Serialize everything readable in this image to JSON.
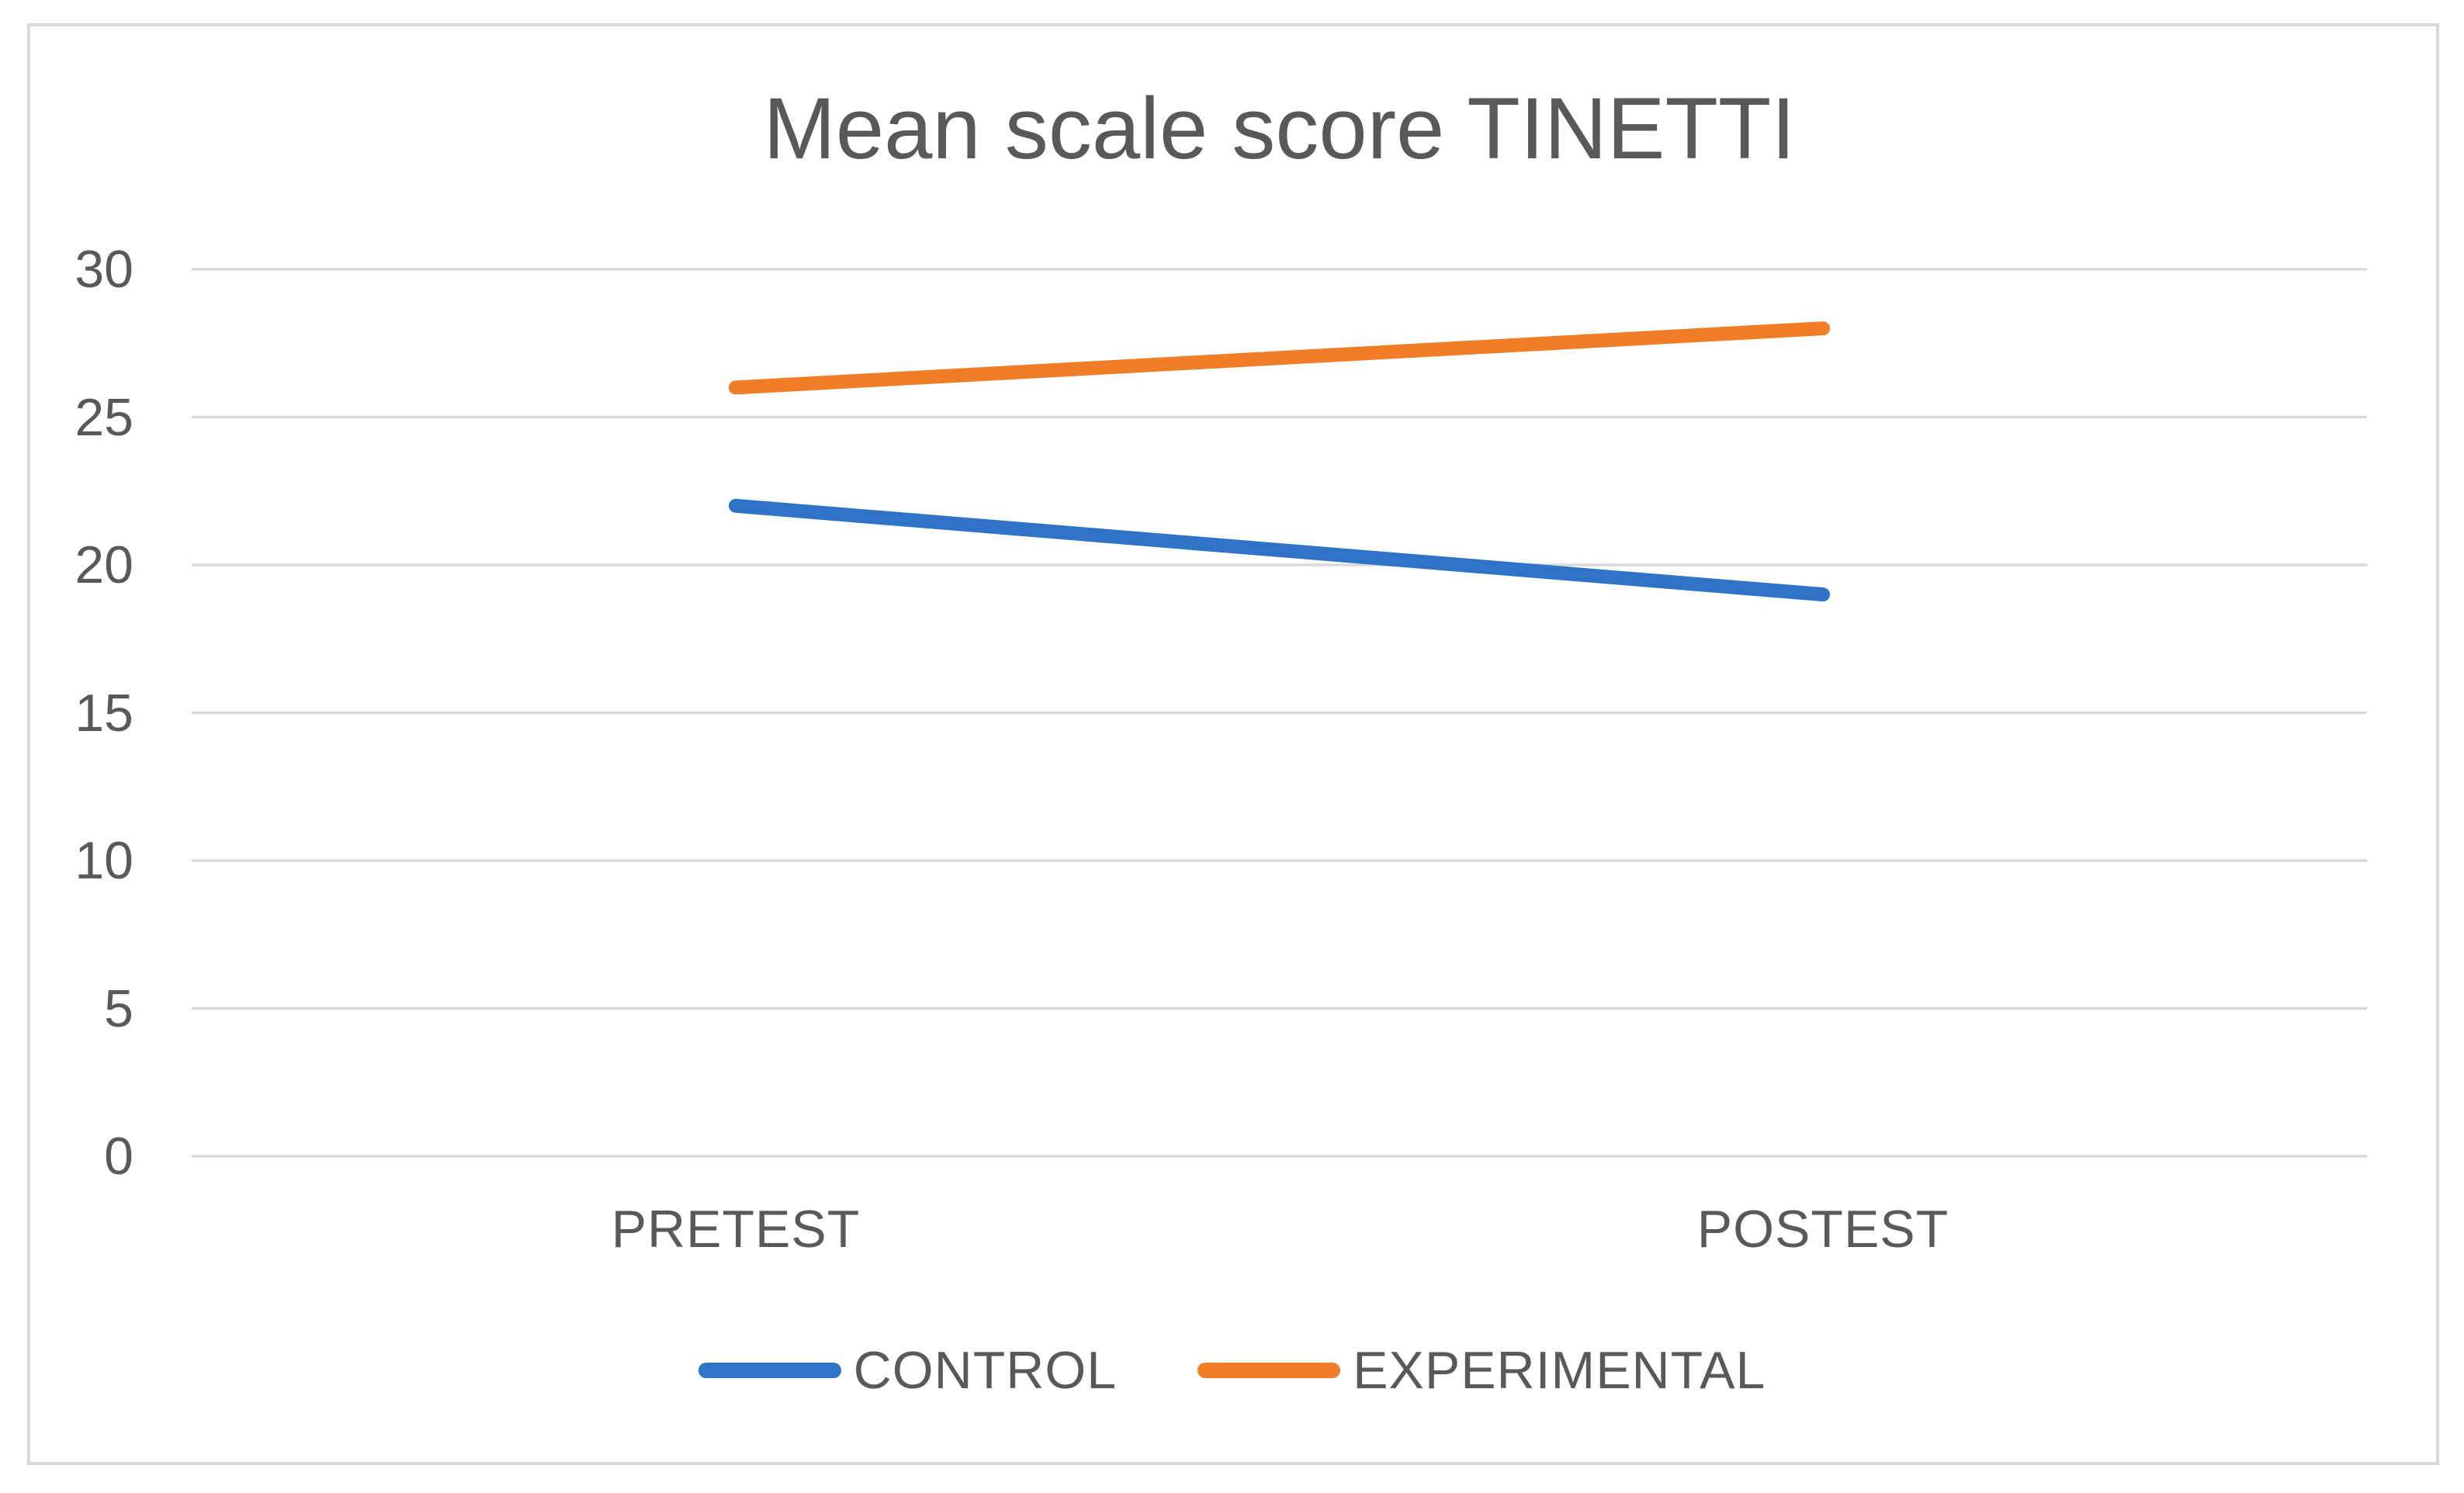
{
  "chart_data": {
    "type": "line",
    "title": "Mean scale score TINETTI",
    "categories": [
      "PRETEST",
      "POSTEST"
    ],
    "series": [
      {
        "name": "CONTROL",
        "color": "#2E73C6",
        "values": [
          22,
          19
        ]
      },
      {
        "name": "EXPERIMENTAL",
        "color": "#F07E28",
        "values": [
          26,
          28
        ]
      }
    ],
    "xlabel": "",
    "ylabel": "",
    "ylim": [
      0,
      30
    ],
    "y_ticks": [
      0,
      5,
      10,
      15,
      20,
      25,
      30
    ],
    "grid": true,
    "legend_position": "bottom"
  },
  "style": {
    "text_color": "#595959",
    "grid_color": "#D9D9D9",
    "frame_border_color": "#D9D9D9",
    "background": "#FFFFFF"
  }
}
